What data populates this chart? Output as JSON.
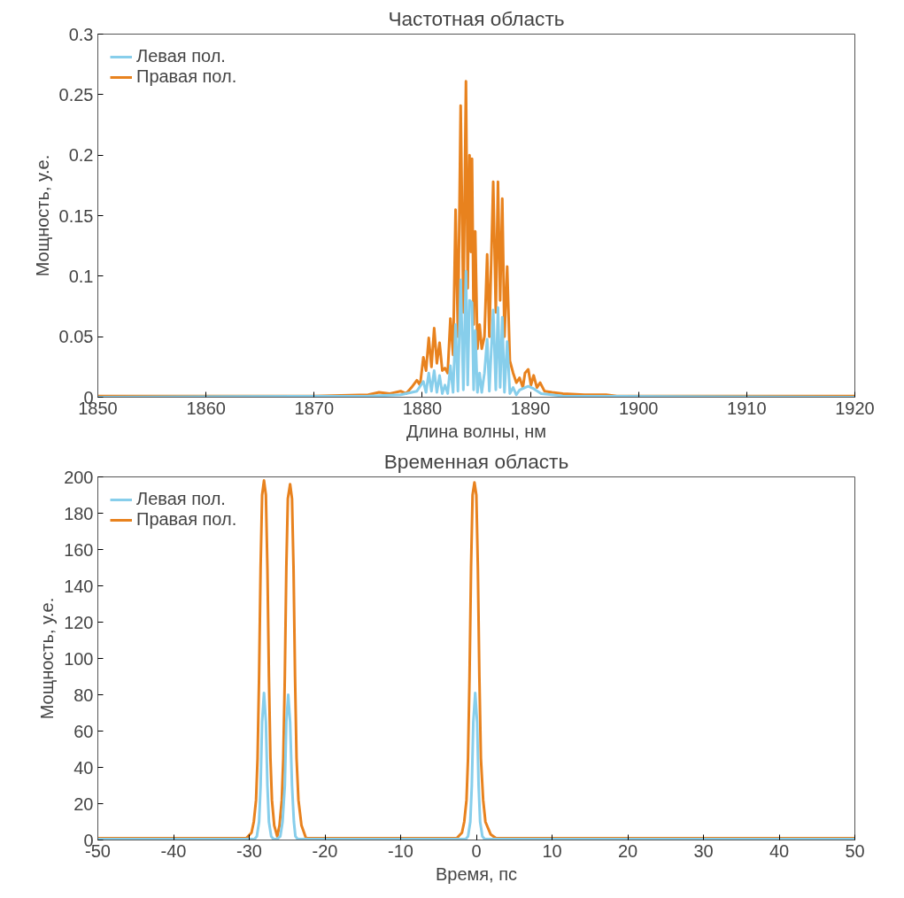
{
  "chart_data": [
    {
      "type": "line",
      "title": "Частотная область",
      "xlabel": "Длина волны, нм",
      "ylabel": "Мощность, у.е.",
      "xlim": [
        1850,
        1920
      ],
      "xticks": [
        1850,
        1860,
        1870,
        1880,
        1890,
        1900,
        1910,
        1920
      ],
      "ylim": [
        0,
        0.3
      ],
      "yticks": [
        0,
        0.05,
        0.1,
        0.15,
        0.2,
        0.25,
        0.3
      ],
      "grid": false,
      "legend": "top left",
      "marker": "none",
      "line_style": "solid",
      "series": [
        {
          "name": "Левая пол.",
          "color": "#87ceeb",
          "x": [
            1850,
            1875,
            1878,
            1879.5,
            1880.1,
            1880.35,
            1880.6,
            1880.85,
            1881.1,
            1881.35,
            1881.6,
            1881.85,
            1882.1,
            1882.35,
            1882.6,
            1882.85,
            1883.08,
            1883.3,
            1883.55,
            1883.8,
            1884.04,
            1884.2,
            1884.37,
            1884.6,
            1884.75,
            1884.9,
            1885.1,
            1885.3,
            1885.5,
            1885.75,
            1886.0,
            1886.2,
            1886.56,
            1886.8,
            1887.0,
            1887.2,
            1887.4,
            1887.6,
            1887.85,
            1888.1,
            1888.4,
            1888.7,
            1889.0,
            1889.5,
            1889.8,
            1890.3,
            1891,
            1893,
            1920
          ],
          "values": [
            0.0,
            0.001,
            0.002,
            0.005,
            0.013,
            0.004,
            0.02,
            0.005,
            0.022,
            0.004,
            0.018,
            0.003,
            0.01,
            0.003,
            0.026,
            0.004,
            0.06,
            0.005,
            0.097,
            0.006,
            0.104,
            0.01,
            0.08,
            0.078,
            0.006,
            0.055,
            0.004,
            0.02,
            0.004,
            0.02,
            0.048,
            0.005,
            0.072,
            0.006,
            0.074,
            0.008,
            0.066,
            0.004,
            0.046,
            0.003,
            0.008,
            0.002,
            0.006,
            0.008,
            0.009,
            0.007,
            0.003,
            0.001,
            0.0
          ]
        },
        {
          "name": "Правая пол.",
          "color": "#e8821e",
          "x": [
            1850,
            1870,
            1875,
            1876,
            1877,
            1878,
            1878.5,
            1879,
            1879.5,
            1879.8,
            1880.1,
            1880.35,
            1880.6,
            1880.85,
            1881.1,
            1881.35,
            1881.6,
            1881.85,
            1882.1,
            1882.35,
            1882.6,
            1882.85,
            1883.08,
            1883.3,
            1883.55,
            1883.8,
            1884.04,
            1884.2,
            1884.37,
            1884.5,
            1884.6,
            1884.75,
            1884.9,
            1885.1,
            1885.3,
            1885.5,
            1885.75,
            1886.0,
            1886.2,
            1886.56,
            1886.8,
            1887.0,
            1887.2,
            1887.4,
            1887.6,
            1887.85,
            1888.1,
            1888.4,
            1888.7,
            1889.0,
            1889.3,
            1889.5,
            1889.8,
            1890.05,
            1890.3,
            1890.6,
            1890.9,
            1891.3,
            1892,
            1893,
            1895,
            1897,
            1898,
            1920
          ],
          "values": [
            0.001,
            0.001,
            0.002,
            0.004,
            0.003,
            0.005,
            0.003,
            0.008,
            0.014,
            0.01,
            0.033,
            0.022,
            0.049,
            0.025,
            0.057,
            0.028,
            0.045,
            0.022,
            0.024,
            0.02,
            0.065,
            0.035,
            0.155,
            0.05,
            0.241,
            0.07,
            0.261,
            0.09,
            0.2,
            0.12,
            0.197,
            0.06,
            0.137,
            0.04,
            0.06,
            0.04,
            0.05,
            0.118,
            0.05,
            0.178,
            0.07,
            0.178,
            0.08,
            0.164,
            0.05,
            0.108,
            0.03,
            0.02,
            0.012,
            0.016,
            0.008,
            0.02,
            0.023,
            0.01,
            0.018,
            0.008,
            0.012,
            0.005,
            0.004,
            0.003,
            0.002,
            0.002,
            0.001,
            0.001
          ]
        }
      ]
    },
    {
      "type": "line",
      "title": "Временная область",
      "xlabel": "Время, пс",
      "ylabel": "Мощность, у.е.",
      "xlim": [
        -50,
        50
      ],
      "xticks": [
        -50,
        -40,
        -30,
        -20,
        -10,
        0,
        10,
        20,
        30,
        40,
        50
      ],
      "ylim": [
        0,
        200
      ],
      "yticks": [
        0,
        20,
        40,
        60,
        80,
        100,
        120,
        140,
        160,
        180,
        200
      ],
      "grid": false,
      "legend": "top left",
      "marker": "none",
      "line_style": "solid",
      "series": [
        {
          "name": "Левая пол.",
          "color": "#87ceeb",
          "x": [
            -50,
            -29.3,
            -29.0,
            -28.7,
            -28.5,
            -28.3,
            -28.05,
            -27.8,
            -27.6,
            -27.4,
            -27.1,
            -26.8,
            -26.3,
            -25.9,
            -25.6,
            -25.3,
            -25.1,
            -24.85,
            -24.6,
            -24.35,
            -24.1,
            -23.9,
            -23.6,
            -23.2,
            -1.4,
            -1.1,
            -0.8,
            -0.6,
            -0.4,
            -0.15,
            0.1,
            0.3,
            0.5,
            0.8,
            1.1,
            50
          ],
          "values": [
            0.5,
            0.5,
            2,
            10,
            30,
            65,
            81,
            65,
            30,
            10,
            2,
            0.5,
            0.5,
            2,
            10,
            30,
            65,
            80,
            65,
            30,
            10,
            2,
            0.5,
            0.5,
            0.5,
            2,
            10,
            30,
            65,
            81,
            65,
            30,
            10,
            2,
            0.5,
            0.5
          ]
        },
        {
          "name": "Правая пол.",
          "color": "#e8821e",
          "x": [
            -50,
            -30.4,
            -29.7,
            -29.4,
            -29.1,
            -28.9,
            -28.7,
            -28.5,
            -28.3,
            -28.05,
            -27.8,
            -27.6,
            -27.4,
            -27.2,
            -27.0,
            -26.7,
            -26.3,
            -26.0,
            -25.7,
            -25.5,
            -25.3,
            -25.1,
            -24.9,
            -24.6,
            -24.35,
            -24.15,
            -23.95,
            -23.75,
            -23.5,
            -23.1,
            -22.5,
            -2.6,
            -1.9,
            -1.6,
            -1.3,
            -1.1,
            -0.9,
            -0.7,
            -0.5,
            -0.25,
            0.0,
            0.2,
            0.4,
            0.6,
            0.9,
            1.2,
            1.9,
            2.6,
            50
          ],
          "values": [
            1,
            1,
            4,
            10,
            22,
            45,
            90,
            150,
            190,
            198,
            190,
            150,
            90,
            45,
            22,
            8,
            2,
            8,
            22,
            45,
            90,
            150,
            188,
            196,
            188,
            150,
            90,
            45,
            22,
            8,
            1,
            1,
            4,
            10,
            22,
            45,
            90,
            150,
            190,
            197,
            190,
            150,
            90,
            45,
            22,
            10,
            3,
            1,
            1
          ]
        }
      ]
    }
  ]
}
